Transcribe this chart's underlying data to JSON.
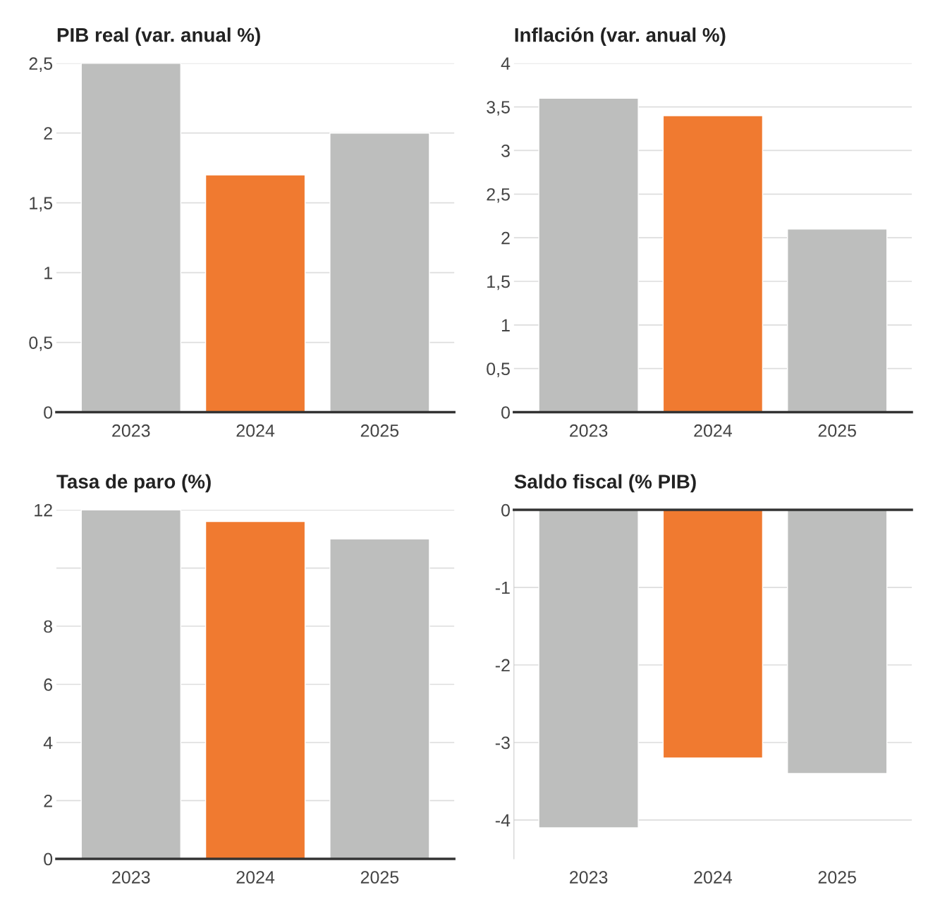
{
  "chart_data": [
    {
      "type": "bar",
      "title": "PIB real (var. anual %)",
      "categories": [
        "2023",
        "2024",
        "2025"
      ],
      "values": [
        2.5,
        1.7,
        2.0
      ],
      "colors": [
        "#bdbebd",
        "#f07a30",
        "#bdbebd"
      ],
      "ylim": [
        0,
        2.5
      ],
      "yticks": [
        0,
        {
          "value": 0.5,
          "label": "0,5"
        },
        1,
        {
          "value": 1.5,
          "label": "1,5"
        },
        2,
        {
          "value": 2.5,
          "label": "2,5"
        }
      ],
      "grid": "y"
    },
    {
      "type": "bar",
      "title": "Inflación (var. anual %)",
      "categories": [
        "2023",
        "2024",
        "2025"
      ],
      "values": [
        3.6,
        3.4,
        2.1
      ],
      "colors": [
        "#bdbebd",
        "#f07a30",
        "#bdbebd"
      ],
      "ylim": [
        0,
        4
      ],
      "yticks": [
        0,
        {
          "value": 0.5,
          "label": "0,5"
        },
        1,
        {
          "value": 1.5,
          "label": "1,5"
        },
        2,
        {
          "value": 2.5,
          "label": "2,5"
        },
        3,
        {
          "value": 3.5,
          "label": "3,5"
        },
        4
      ],
      "grid": "y"
    },
    {
      "type": "bar",
      "title": "Tasa de paro (%)",
      "categories": [
        "2023",
        "2024",
        "2025"
      ],
      "values": [
        12.0,
        11.6,
        11.0
      ],
      "colors": [
        "#bdbebd",
        "#f07a30",
        "#bdbebd"
      ],
      "ylim": [
        0,
        12
      ],
      "yticks": [
        0,
        2,
        4,
        6,
        8,
        {
          "value": 10,
          "label": null
        },
        12
      ],
      "grid": "y"
    },
    {
      "type": "bar",
      "title": "Saldo fiscal (% PIB)",
      "categories": [
        "2023",
        "2024",
        "2025"
      ],
      "values": [
        -4.1,
        -3.2,
        -3.4
      ],
      "colors": [
        "#bdbebd",
        "#f07a30",
        "#bdbebd"
      ],
      "ylim": [
        -4.5,
        0
      ],
      "yticks": [
        -4,
        -3,
        -2,
        -1,
        0
      ],
      "grid": "y"
    }
  ]
}
